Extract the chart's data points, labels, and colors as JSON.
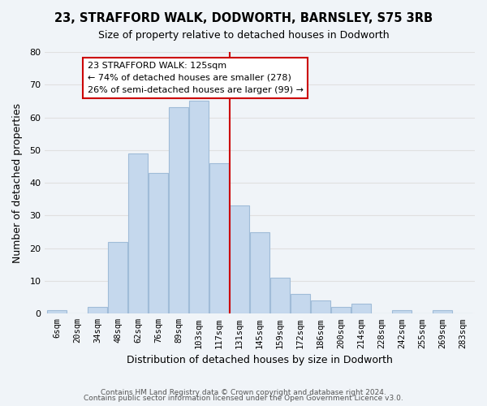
{
  "title": "23, STRAFFORD WALK, DODWORTH, BARNSLEY, S75 3RB",
  "subtitle": "Size of property relative to detached houses in Dodworth",
  "xlabel": "Distribution of detached houses by size in Dodworth",
  "ylabel": "Number of detached properties",
  "bin_labels": [
    "6sqm",
    "20sqm",
    "34sqm",
    "48sqm",
    "62sqm",
    "76sqm",
    "89sqm",
    "103sqm",
    "117sqm",
    "131sqm",
    "145sqm",
    "159sqm",
    "172sqm",
    "186sqm",
    "200sqm",
    "214sqm",
    "228sqm",
    "242sqm",
    "255sqm",
    "269sqm",
    "283sqm"
  ],
  "bar_values": [
    1,
    0,
    2,
    22,
    49,
    43,
    63,
    65,
    46,
    33,
    25,
    11,
    6,
    4,
    2,
    3,
    0,
    1,
    0,
    1,
    0
  ],
  "bar_color": "#c5d8ed",
  "bar_edge_color": "#a0bcd8",
  "grid_color": "#e0e0e0",
  "vline_x": 8.5,
  "annotation_title": "23 STRAFFORD WALK: 125sqm",
  "annotation_line1": "← 74% of detached houses are smaller (278)",
  "annotation_line2": "26% of semi-detached houses are larger (99) →",
  "annotation_box_color": "#ffffff",
  "annotation_box_edge": "#cc0000",
  "vline_color": "#cc0000",
  "ylim": [
    0,
    80
  ],
  "yticks": [
    0,
    10,
    20,
    30,
    40,
    50,
    60,
    70,
    80
  ],
  "footer1": "Contains HM Land Registry data © Crown copyright and database right 2024.",
  "footer2": "Contains public sector information licensed under the Open Government Licence v3.0.",
  "background_color": "#f0f4f8"
}
